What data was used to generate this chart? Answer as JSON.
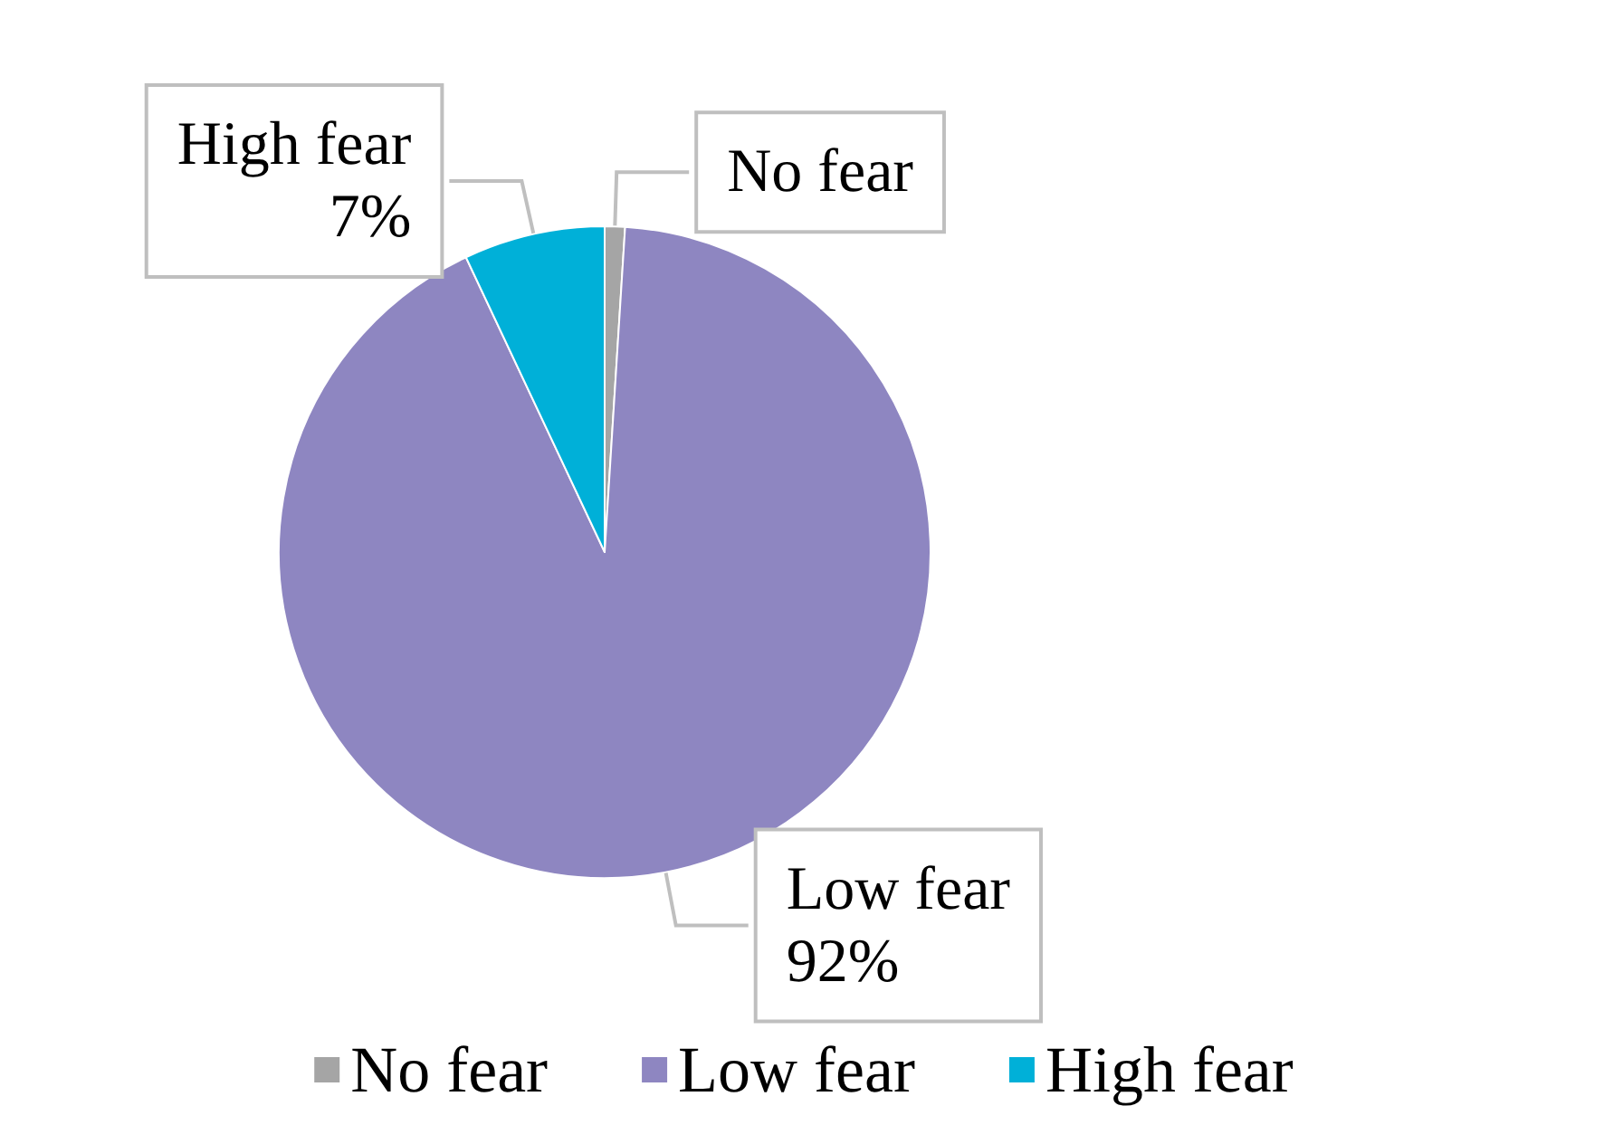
{
  "chart_data": {
    "type": "pie",
    "categories": [
      "No fear",
      "Low fear",
      "High fear"
    ],
    "values": [
      1,
      92,
      7
    ],
    "value_labels": [
      null,
      "92%",
      "7%"
    ],
    "colors": [
      "#a5a5a5",
      "#8e86c1",
      "#00b0d8"
    ],
    "legend": "bottom"
  }
}
